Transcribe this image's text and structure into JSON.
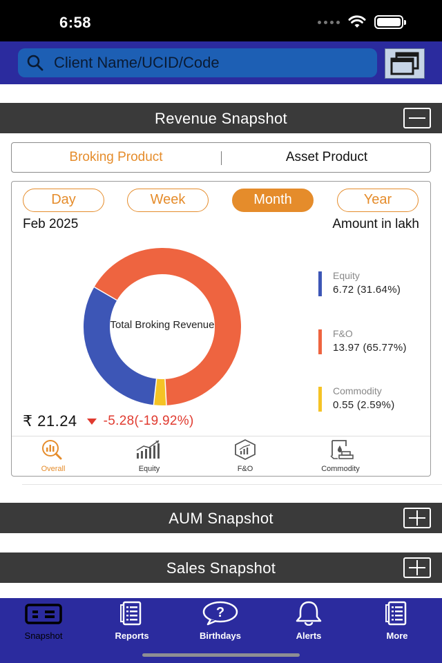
{
  "status_bar": {
    "time": "6:58"
  },
  "header": {
    "search": {
      "placeholder": "Client Name/UCID/Code"
    }
  },
  "revenue_section": {
    "title": "Revenue Snapshot",
    "toggle": "collapse",
    "product_tabs": [
      {
        "label": "Broking Product",
        "active": true
      },
      {
        "label": "Asset Product",
        "active": false
      }
    ],
    "periods": [
      {
        "label": "Day",
        "active": false
      },
      {
        "label": "Week",
        "active": false
      },
      {
        "label": "Month",
        "active": true
      },
      {
        "label": "Year",
        "active": false
      }
    ],
    "period_label": "Feb 2025",
    "unit_label": "Amount in lakh",
    "center_label": "Total Broking Revenue",
    "legend": [
      {
        "name": "Equity",
        "value": "6.72 (31.64%)",
        "color": "#3d56b6"
      },
      {
        "name": "F&O",
        "value": "13.97 (65.77%)",
        "color": "#ee6440"
      },
      {
        "name": "Commodity",
        "value": "0.55 (2.59%)",
        "color": "#f5c325"
      }
    ],
    "total": "₹ 21.24",
    "change": "-5.28(-19.92%)",
    "sub_tabs": [
      {
        "label": "Overall",
        "icon": "magnify-chart-icon",
        "active": true
      },
      {
        "label": "Equity",
        "icon": "bar-chart-trend-icon",
        "active": false
      },
      {
        "label": "F&O",
        "icon": "hexagon-chart-icon",
        "active": false
      },
      {
        "label": "Commodity",
        "icon": "commodity-icon",
        "active": false
      }
    ]
  },
  "aum_section": {
    "title": "AUM Snapshot",
    "toggle": "expand"
  },
  "sales_section": {
    "title": "Sales Snapshot",
    "toggle": "expand"
  },
  "tab_bar": [
    {
      "label": "Snapshot",
      "icon": "id-card-icon",
      "active": true
    },
    {
      "label": "Reports",
      "icon": "document-list-icon",
      "active": false
    },
    {
      "label": "Birthdays",
      "icon": "question-bubble-icon",
      "active": false
    },
    {
      "label": "Alerts",
      "icon": "bell-icon",
      "active": false
    },
    {
      "label": "More",
      "icon": "document-more-icon",
      "active": false
    }
  ],
  "colors": {
    "header": "#2b2b9e",
    "accent": "#e58c2b",
    "negative": "#e03a2f",
    "section_bar": "#3a3a3a"
  }
}
